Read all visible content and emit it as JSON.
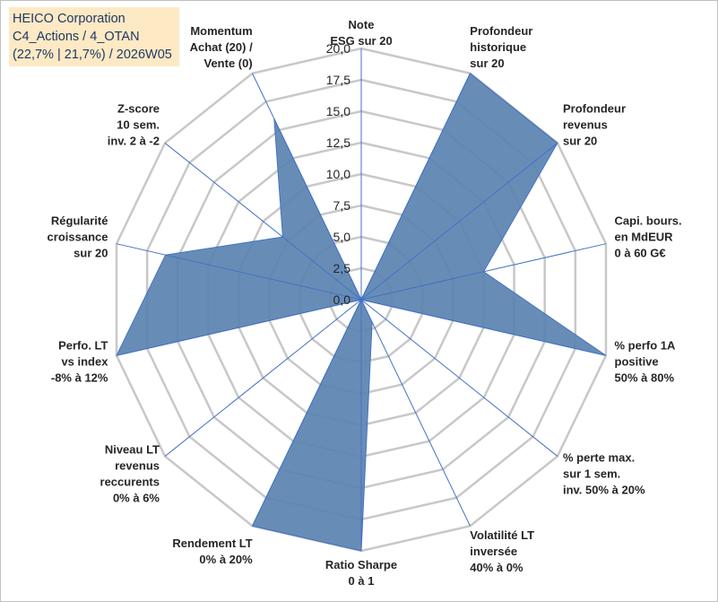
{
  "title": {
    "line1": "HEICO Corporation",
    "line2": "C4_Actions / 4_OTAN",
    "line3": "(22,7% | 21,7%) / 2026W05"
  },
  "chart_data": {
    "type": "radar",
    "title": "HEICO Corporation",
    "r_range": [
      0,
      20
    ],
    "r_ticks": [
      "0,0",
      "2,5",
      "5,0",
      "7,5",
      "10,0",
      "12,5",
      "15,0",
      "17,5",
      "20,0"
    ],
    "gridlines": true,
    "axes": [
      {
        "label": [
          "Note",
          "ESG sur 20"
        ],
        "value": 0
      },
      {
        "label": [
          "Profondeur",
          "historique",
          "sur 20"
        ],
        "value": 20
      },
      {
        "label": [
          "Profondeur",
          "revenus",
          "sur 20"
        ],
        "value": 20
      },
      {
        "label": [
          "Capi. bours.",
          "en MdEUR",
          "0 à 60 G€"
        ],
        "value": 10
      },
      {
        "label": [
          "% perfo 1A",
          "positive",
          "50% à 80%"
        ],
        "value": 20
      },
      {
        "label": [
          "% perte max.",
          "sur 1 sem.",
          "inv. 50% à 20%"
        ],
        "value": 0
      },
      {
        "label": [
          "Volatilité LT",
          "inversée",
          "40% à 0%"
        ],
        "value": 2
      },
      {
        "label": [
          "Ratio Sharpe",
          "0 à 1"
        ],
        "value": 20
      },
      {
        "label": [
          "Rendement LT",
          "0% à 20%"
        ],
        "value": 20
      },
      {
        "label": [
          "Niveau LT",
          "revenus",
          "reccurents",
          "0% à 6%"
        ],
        "value": 0
      },
      {
        "label": [
          "Perfo. LT",
          "vs index",
          "-8% à 12%"
        ],
        "value": 20
      },
      {
        "label": [
          "Régularité",
          "croissance",
          "sur 20"
        ],
        "value": 16
      },
      {
        "label": [
          "Z-score",
          "10 sem.",
          "inv. 2 à -2"
        ],
        "value": 8
      },
      {
        "label": [
          "Momentum",
          "Achat (20) /",
          "Vente (0)"
        ],
        "value": 16
      }
    ],
    "series": [
      {
        "name": "HEICO Corporation",
        "color": "#5b84b1"
      }
    ]
  }
}
